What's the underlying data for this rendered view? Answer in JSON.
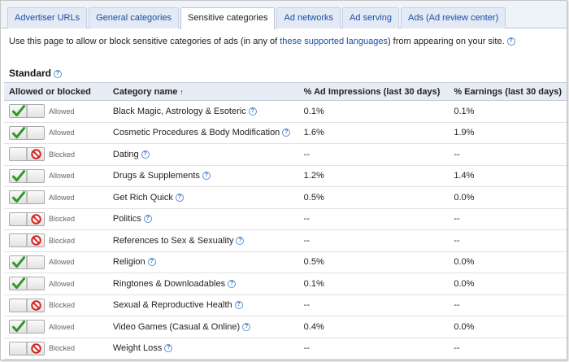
{
  "tabs": [
    {
      "label": "Advertiser URLs",
      "active": false
    },
    {
      "label": "General categories",
      "active": false
    },
    {
      "label": "Sensitive categories",
      "active": true
    },
    {
      "label": "Ad networks",
      "active": false
    },
    {
      "label": "Ad serving",
      "active": false
    },
    {
      "label": "Ads (Ad review center)",
      "active": false
    }
  ],
  "intro": {
    "text_before": "Use this page to allow or block sensitive categories of ads (in any of ",
    "link": "these supported languages",
    "text_after": ") from appearing on your site."
  },
  "section": {
    "title": "Standard"
  },
  "table": {
    "headers": {
      "status": "Allowed or blocked",
      "category": "Category name",
      "sort_indicator": "↑",
      "impressions": "% Ad Impressions (last 30 days)",
      "earnings": "% Earnings (last 30 days)"
    },
    "rows": [
      {
        "status": "Allowed",
        "allowed": true,
        "category": "Black Magic, Astrology & Esoteric",
        "impressions": "0.1%",
        "earnings": "0.1%"
      },
      {
        "status": "Allowed",
        "allowed": true,
        "category": "Cosmetic Procedures & Body Modification",
        "impressions": "1.6%",
        "earnings": "1.9%"
      },
      {
        "status": "Blocked",
        "allowed": false,
        "category": "Dating",
        "impressions": "--",
        "earnings": "--"
      },
      {
        "status": "Allowed",
        "allowed": true,
        "category": "Drugs & Supplements",
        "impressions": "1.2%",
        "earnings": "1.4%"
      },
      {
        "status": "Allowed",
        "allowed": true,
        "category": "Get Rich Quick",
        "impressions": "0.5%",
        "earnings": "0.0%"
      },
      {
        "status": "Blocked",
        "allowed": false,
        "category": "Politics",
        "impressions": "--",
        "earnings": "--"
      },
      {
        "status": "Blocked",
        "allowed": false,
        "category": "References to Sex & Sexuality",
        "impressions": "--",
        "earnings": "--"
      },
      {
        "status": "Allowed",
        "allowed": true,
        "category": "Religion",
        "impressions": "0.5%",
        "earnings": "0.0%"
      },
      {
        "status": "Allowed",
        "allowed": true,
        "category": "Ringtones & Downloadables",
        "impressions": "0.1%",
        "earnings": "0.0%"
      },
      {
        "status": "Blocked",
        "allowed": false,
        "category": "Sexual & Reproductive Health",
        "impressions": "--",
        "earnings": "--"
      },
      {
        "status": "Allowed",
        "allowed": true,
        "category": "Video Games (Casual & Online)",
        "impressions": "0.4%",
        "earnings": "0.0%"
      },
      {
        "status": "Blocked",
        "allowed": false,
        "category": "Weight Loss",
        "impressions": "--",
        "earnings": "--"
      }
    ]
  },
  "icons": {
    "help": "question-mark-circle-icon",
    "allowed": "green-check-icon",
    "blocked": "red-no-entry-icon"
  },
  "colors": {
    "link": "#1a4fa0",
    "check": "#2e9a2a",
    "block": "#d81e1e",
    "tabbar": "#eef2f9",
    "header_bg": "#e8edf5"
  }
}
